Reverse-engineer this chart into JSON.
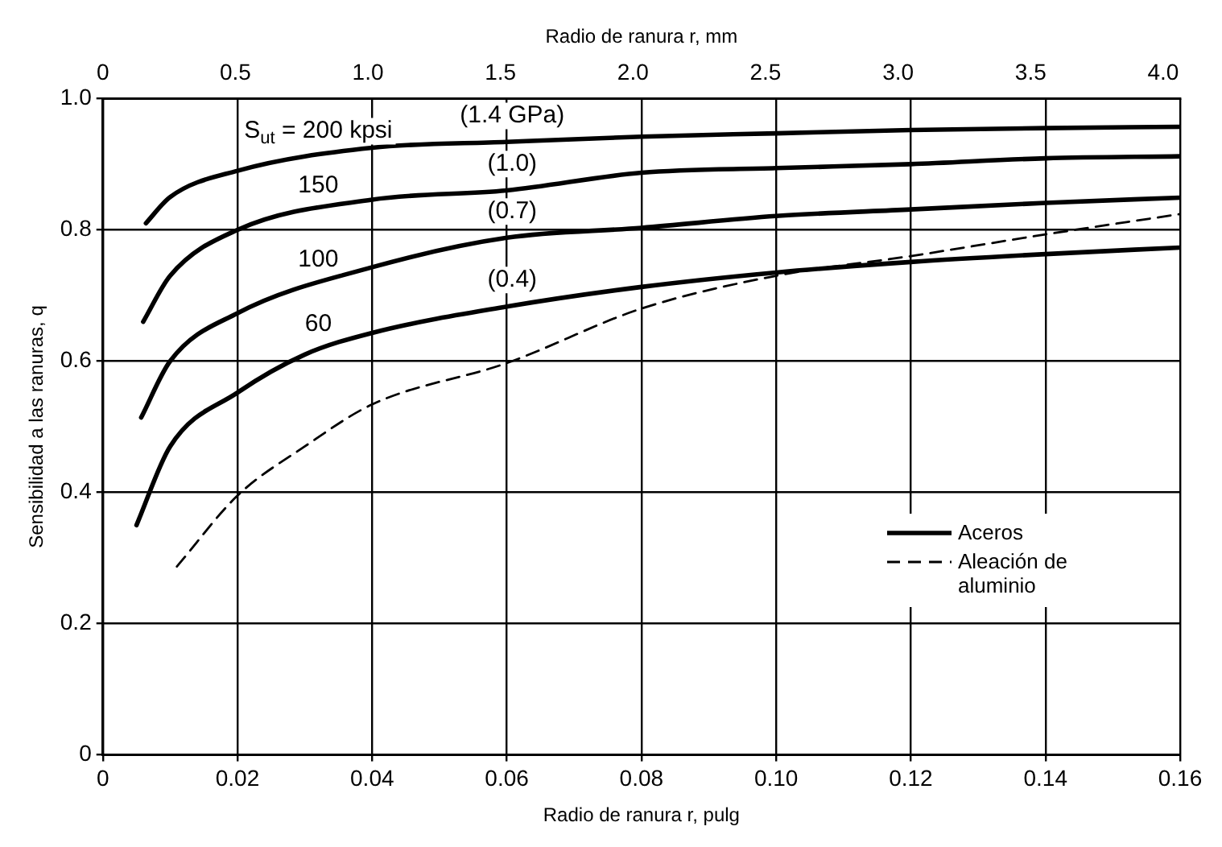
{
  "chart_data": {
    "type": "line",
    "xlabel": "Radio de ranura r, pulg",
    "x2label": "Radio de ranura r, mm",
    "ylabel": "Sensibilidad a las ranuras, q",
    "xlim": [
      0,
      0.16
    ],
    "xticks": [
      0,
      0.02,
      0.04,
      0.06,
      0.08,
      {
        "value": 0.1,
        "label": "0.10"
      },
      0.12,
      0.14,
      0.16
    ],
    "x2lim": [
      0,
      4.064
    ],
    "x2ticks": [
      0,
      0.5,
      {
        "value": 1,
        "label": "1.0"
      },
      1.5,
      {
        "value": 2,
        "label": "2.0"
      },
      2.5,
      {
        "value": 3,
        "label": "3.0"
      },
      3.5,
      {
        "value": 4,
        "label": "4.0"
      }
    ],
    "ylim": [
      0,
      1
    ],
    "yticks": [
      0,
      0.2,
      0.4,
      0.6,
      0.8,
      {
        "value": 1,
        "label": "1.0"
      }
    ],
    "grid": true,
    "legend": "bottom right",
    "marker": "none",
    "series": [
      {
        "name": "Aceros",
        "color": "#000000",
        "line_style": "solid",
        "x": [
          0.0064,
          0.01,
          0.02,
          0.04,
          0.06,
          0.08,
          0.1,
          0.12,
          0.14,
          0.16
        ],
        "values": [
          0.81,
          0.85,
          0.89,
          0.925,
          0.934,
          0.942,
          0.947,
          0.952,
          0.955,
          0.957
        ]
      },
      {
        "color": "#000000",
        "line_style": "solid",
        "x": [
          0.006,
          0.01,
          0.02,
          0.04,
          0.06,
          0.08,
          0.1,
          0.12,
          0.14,
          0.16
        ],
        "values": [
          0.66,
          0.73,
          0.8,
          0.846,
          0.86,
          0.887,
          0.894,
          0.9,
          0.909,
          0.912
        ]
      },
      {
        "color": "#000000",
        "line_style": "solid",
        "x": [
          0.0057,
          0.01,
          0.02,
          0.04,
          0.06,
          0.08,
          0.1,
          0.12,
          0.14,
          0.16
        ],
        "values": [
          0.514,
          0.6,
          0.673,
          0.743,
          0.788,
          0.803,
          0.821,
          0.831,
          0.841,
          0.849
        ]
      },
      {
        "color": "#000000",
        "line_style": "solid",
        "x": [
          0.005,
          0.01,
          0.02,
          0.03,
          0.04,
          0.06,
          0.08,
          0.1,
          0.12,
          0.14,
          0.16
        ],
        "values": [
          0.35,
          0.47,
          0.552,
          0.61,
          0.643,
          0.683,
          0.713,
          0.735,
          0.751,
          0.763,
          0.773
        ]
      },
      {
        "name": "Aleación de aluminio",
        "color": "#000000",
        "line_style": "dashed",
        "x": [
          0.011,
          0.02,
          0.03,
          0.04,
          0.06,
          0.08,
          0.1,
          0.12,
          0.14,
          0.16
        ],
        "values": [
          0.287,
          0.395,
          0.47,
          0.534,
          0.597,
          0.68,
          0.73,
          0.76,
          0.793,
          0.824
        ]
      }
    ],
    "annotations": [
      "S$_{ut}$ = 200 kpsi",
      "(1.4 GPa)",
      "150",
      "(1.0)",
      "100",
      "(0.7)",
      "60",
      "(0.4)"
    ]
  }
}
